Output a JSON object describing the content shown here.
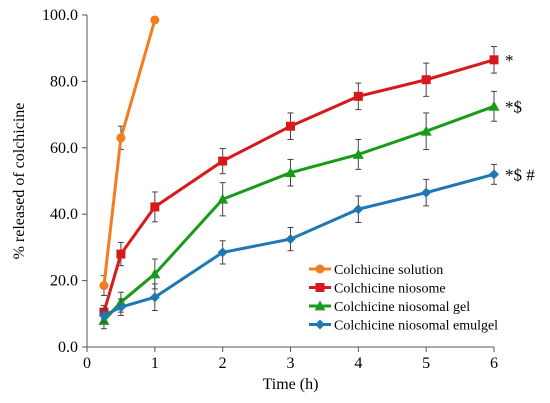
{
  "chart_data": {
    "type": "line",
    "title": "",
    "xlabel": "Time (h)",
    "ylabel": "% released of colchicine",
    "xlim": [
      0,
      6
    ],
    "ylim": [
      0,
      100
    ],
    "x_ticks": [
      "0",
      "1",
      "2",
      "3",
      "4",
      "5",
      "6"
    ],
    "y_ticks": [
      "0.0",
      "20.0",
      "40.0",
      "60.0",
      "80.0",
      "100.0"
    ],
    "grid": false,
    "legend_position": "bottom-right",
    "series": [
      {
        "name": "Colchicine solution",
        "color": "#f47b20",
        "marker": "circle",
        "x": [
          0.25,
          0.5,
          1
        ],
        "y": [
          18.5,
          63,
          98.5
        ],
        "err": [
          3,
          3.5,
          0
        ]
      },
      {
        "name": "Colchicine niosome",
        "color": "#d7191c",
        "marker": "square",
        "x": [
          0.25,
          0.5,
          1,
          2,
          3,
          4,
          5,
          6
        ],
        "y": [
          10.5,
          28,
          42.2,
          56,
          66.5,
          75.5,
          80.5,
          86.5
        ],
        "err": [
          2,
          3.5,
          4.5,
          3.8,
          4,
          4,
          5,
          4
        ],
        "annotation": "*"
      },
      {
        "name": "Colchicine niosomal gel",
        "color": "#1a9a1a",
        "marker": "triangle",
        "x": [
          0.25,
          0.5,
          1,
          2,
          3,
          4,
          5,
          6
        ],
        "y": [
          8,
          13.5,
          22,
          44.5,
          52.5,
          58,
          65,
          72.5
        ],
        "err": [
          2.5,
          3,
          4.5,
          5,
          4,
          4.5,
          5.5,
          4.5
        ],
        "annotation": "*$"
      },
      {
        "name": "Colchicine niosomal emulgel",
        "color": "#1f77b4",
        "marker": "diamond",
        "x": [
          0.25,
          0.5,
          1,
          2,
          3,
          4,
          5,
          6
        ],
        "y": [
          9.5,
          12,
          15,
          28.5,
          32.5,
          41.5,
          46.5,
          52
        ],
        "err": [
          2,
          2.5,
          4,
          3.5,
          3.5,
          4,
          4,
          3
        ],
        "annotation": "*$ #"
      }
    ]
  }
}
